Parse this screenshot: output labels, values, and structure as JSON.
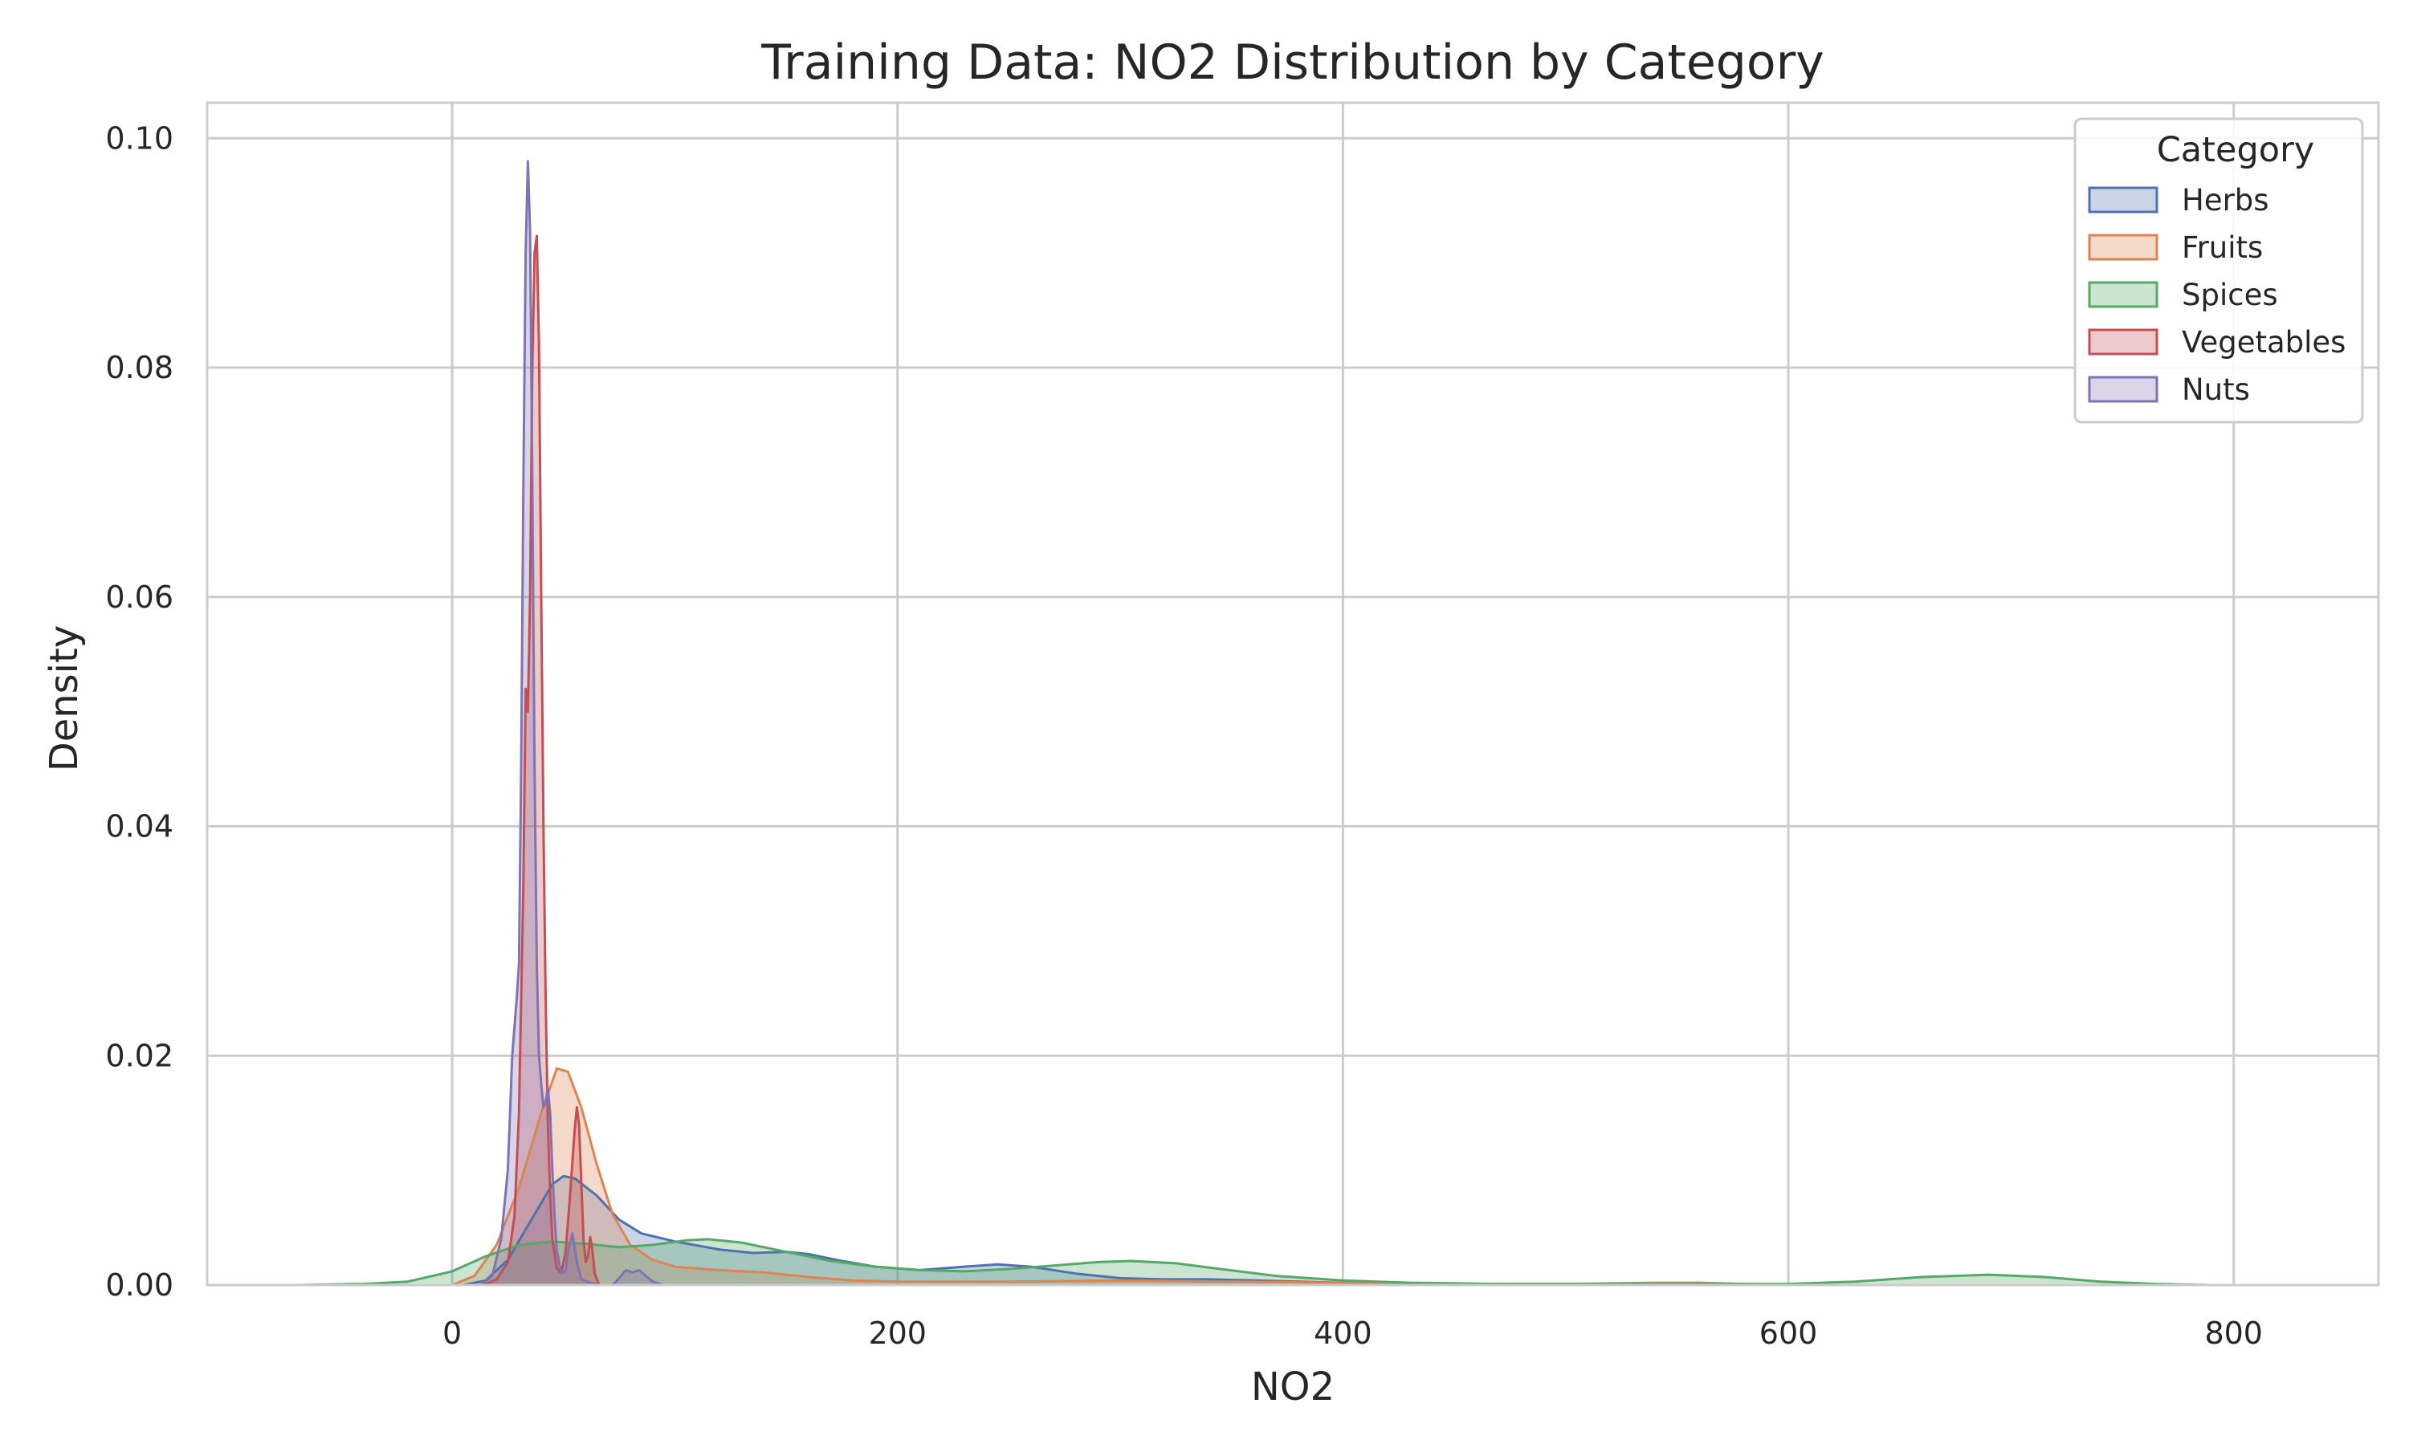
{
  "chart_data": {
    "type": "area",
    "title": "Training Data: NO2 Distribution by Category",
    "xlabel": "NO2",
    "ylabel": "Density",
    "xlim": [
      -110,
      865
    ],
    "ylim": [
      0,
      0.1031
    ],
    "x_ticks": [
      0,
      200,
      400,
      600,
      800
    ],
    "y_ticks": [
      0.0,
      0.02,
      0.04,
      0.06,
      0.08,
      0.1
    ],
    "x_tick_labels": [
      "0",
      "200",
      "400",
      "600",
      "800"
    ],
    "y_tick_labels": [
      "0.00",
      "0.02",
      "0.04",
      "0.06",
      "0.08",
      "0.10"
    ],
    "grid": true,
    "legend": {
      "title": "Category",
      "position": "top-right"
    },
    "series": [
      {
        "name": "Herbs",
        "color": "#4c72b0",
        "points": [
          [
            5,
            0
          ],
          [
            15,
            0.0004
          ],
          [
            25,
            0.0022
          ],
          [
            35,
            0.0055
          ],
          [
            45,
            0.0088
          ],
          [
            50,
            0.0095
          ],
          [
            55,
            0.0093
          ],
          [
            65,
            0.0078
          ],
          [
            75,
            0.0057
          ],
          [
            85,
            0.0045
          ],
          [
            100,
            0.0038
          ],
          [
            120,
            0.0031
          ],
          [
            135,
            0.0028
          ],
          [
            150,
            0.0029
          ],
          [
            160,
            0.0027
          ],
          [
            175,
            0.0021
          ],
          [
            190,
            0.0016
          ],
          [
            210,
            0.0013
          ],
          [
            230,
            0.0016
          ],
          [
            245,
            0.0018
          ],
          [
            260,
            0.0016
          ],
          [
            280,
            0.001
          ],
          [
            300,
            0.0006
          ],
          [
            320,
            0.0005
          ],
          [
            340,
            0.0005
          ],
          [
            360,
            0.0004
          ],
          [
            380,
            0.0003
          ],
          [
            400,
            0.0002
          ],
          [
            420,
            0.0001
          ],
          [
            440,
            0
          ]
        ]
      },
      {
        "name": "Fruits",
        "color": "#dd8452",
        "points": [
          [
            0,
            0
          ],
          [
            10,
            0.0008
          ],
          [
            20,
            0.0035
          ],
          [
            30,
            0.0085
          ],
          [
            40,
            0.015
          ],
          [
            47,
            0.0189
          ],
          [
            52,
            0.0186
          ],
          [
            58,
            0.0155
          ],
          [
            65,
            0.0105
          ],
          [
            72,
            0.0062
          ],
          [
            80,
            0.0035
          ],
          [
            90,
            0.0022
          ],
          [
            100,
            0.0016
          ],
          [
            120,
            0.0013
          ],
          [
            140,
            0.0011
          ],
          [
            160,
            0.0007
          ],
          [
            180,
            0.0004
          ],
          [
            200,
            0.0003
          ],
          [
            250,
            0.0003
          ],
          [
            300,
            0.0004
          ],
          [
            350,
            0.0003
          ],
          [
            400,
            0.0002
          ],
          [
            450,
            0.0001
          ],
          [
            500,
            0.0001
          ],
          [
            540,
            0.0002
          ],
          [
            560,
            0.0002
          ],
          [
            580,
            0.0001
          ],
          [
            600,
            0
          ]
        ]
      },
      {
        "name": "Spices",
        "color": "#55a868",
        "points": [
          [
            -70,
            0
          ],
          [
            -40,
            0.0001
          ],
          [
            -20,
            0.0003
          ],
          [
            0,
            0.0012
          ],
          [
            15,
            0.0025
          ],
          [
            30,
            0.0035
          ],
          [
            45,
            0.0038
          ],
          [
            60,
            0.0036
          ],
          [
            75,
            0.0033
          ],
          [
            90,
            0.0035
          ],
          [
            105,
            0.0039
          ],
          [
            115,
            0.004
          ],
          [
            130,
            0.0037
          ],
          [
            150,
            0.0029
          ],
          [
            170,
            0.0021
          ],
          [
            190,
            0.0016
          ],
          [
            210,
            0.0013
          ],
          [
            230,
            0.0012
          ],
          [
            250,
            0.0014
          ],
          [
            270,
            0.0017
          ],
          [
            290,
            0.002
          ],
          [
            305,
            0.0021
          ],
          [
            325,
            0.0019
          ],
          [
            345,
            0.0014
          ],
          [
            370,
            0.0008
          ],
          [
            400,
            0.0004
          ],
          [
            430,
            0.0002
          ],
          [
            470,
            0.0001
          ],
          [
            520,
            0.0001
          ],
          [
            560,
            0.0001
          ],
          [
            600,
            0.0001
          ],
          [
            630,
            0.0003
          ],
          [
            660,
            0.0007
          ],
          [
            690,
            0.0009
          ],
          [
            715,
            0.0007
          ],
          [
            740,
            0.0003
          ],
          [
            765,
            0.0001
          ],
          [
            790,
            0
          ]
        ]
      },
      {
        "name": "Vegetables",
        "color": "#c44e52",
        "points": [
          [
            14,
            0
          ],
          [
            20,
            0.0005
          ],
          [
            25,
            0.002
          ],
          [
            28,
            0.006
          ],
          [
            30,
            0.015
          ],
          [
            32,
            0.035
          ],
          [
            33,
            0.052
          ],
          [
            34,
            0.05
          ],
          [
            35,
            0.06
          ],
          [
            36,
            0.08
          ],
          [
            37,
            0.09
          ],
          [
            38,
            0.0915
          ],
          [
            39,
            0.082
          ],
          [
            40,
            0.06
          ],
          [
            41,
            0.04
          ],
          [
            42,
            0.025
          ],
          [
            43,
            0.014
          ],
          [
            44,
            0.008
          ],
          [
            45,
            0.004
          ],
          [
            47,
            0.0015
          ],
          [
            49,
            0.001
          ],
          [
            51,
            0.003
          ],
          [
            53,
            0.008
          ],
          [
            55,
            0.0135
          ],
          [
            56,
            0.0155
          ],
          [
            57,
            0.014
          ],
          [
            58,
            0.009
          ],
          [
            59,
            0.004
          ],
          [
            60,
            0.002
          ],
          [
            61,
            0.0025
          ],
          [
            62,
            0.0042
          ],
          [
            63,
            0.003
          ],
          [
            64,
            0.001
          ],
          [
            66,
            0
          ]
        ]
      },
      {
        "name": "Nuts",
        "color": "#8172b3",
        "points": [
          [
            13,
            0
          ],
          [
            18,
            0.0008
          ],
          [
            22,
            0.004
          ],
          [
            25,
            0.01
          ],
          [
            27,
            0.02
          ],
          [
            29,
            0.025
          ],
          [
            30,
            0.028
          ],
          [
            31,
            0.045
          ],
          [
            32,
            0.07
          ],
          [
            33,
            0.09
          ],
          [
            34,
            0.098
          ],
          [
            35,
            0.092
          ],
          [
            36,
            0.07
          ],
          [
            37,
            0.045
          ],
          [
            38,
            0.028
          ],
          [
            39,
            0.02
          ],
          [
            40,
            0.0175
          ],
          [
            41,
            0.0155
          ],
          [
            42,
            0.016
          ],
          [
            43,
            0.0172
          ],
          [
            44,
            0.015
          ],
          [
            45,
            0.01
          ],
          [
            46,
            0.006
          ],
          [
            47,
            0.003
          ],
          [
            49,
            0.001
          ],
          [
            51,
            0.0012
          ],
          [
            52,
            0.003
          ],
          [
            54,
            0.0045
          ],
          [
            56,
            0.002
          ],
          [
            58,
            0.0005
          ],
          [
            62,
            0.0002
          ],
          [
            66,
            0
          ],
          [
            72,
            0
          ],
          [
            75,
            0.0006
          ],
          [
            78,
            0.0013
          ],
          [
            81,
            0.0011
          ],
          [
            84,
            0.0013
          ],
          [
            87,
            0.0008
          ],
          [
            90,
            0.0003
          ],
          [
            95,
            0
          ]
        ]
      }
    ]
  }
}
